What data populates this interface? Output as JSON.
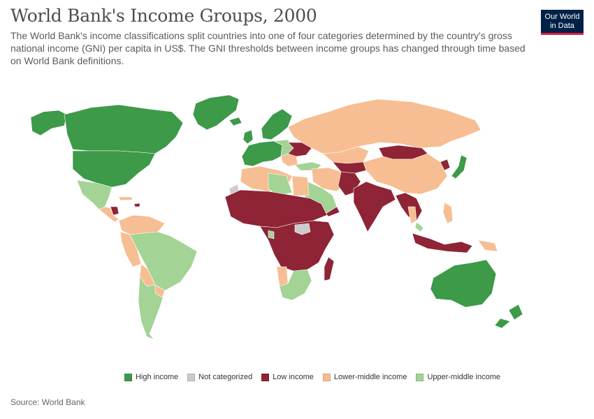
{
  "header": {
    "title": "World Bank's Income Groups, 2000",
    "subtitle": "The World Bank's income classifications split countries into one of four categories determined by the country's gross national income (GNI) per capita in US$. The GNI thresholds between income groups has changed through time based on World Bank definitions."
  },
  "logo": {
    "line1": "Our World",
    "line2": "in Data"
  },
  "colors": {
    "high": "#3c9a48",
    "not_categorized": "#cccccc",
    "low": "#8e2435",
    "lower_middle": "#f6be92",
    "upper_middle": "#a3d395"
  },
  "legend": [
    {
      "key": "high",
      "label": "High income"
    },
    {
      "key": "not_categorized",
      "label": "Not categorized"
    },
    {
      "key": "low",
      "label": "Low income"
    },
    {
      "key": "lower_middle",
      "label": "Lower-middle income"
    },
    {
      "key": "upper_middle",
      "label": "Upper-middle income"
    }
  ],
  "footer": {
    "source": "Source: World Bank"
  }
}
